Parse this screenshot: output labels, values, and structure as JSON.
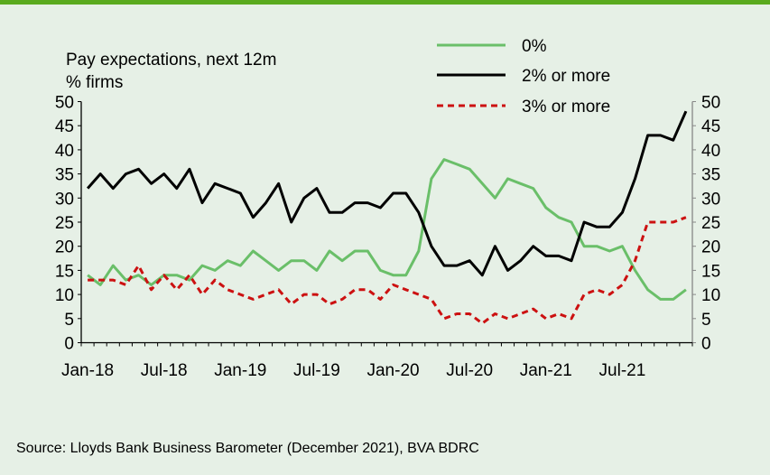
{
  "chart_data": {
    "type": "line",
    "title": "Pay expectations, next 12m",
    "subtitle": "% firms",
    "source": "Source: Lloyds Bank Business Barometer (December 2021), BVA BDRC",
    "ylim": [
      0,
      50
    ],
    "yticks": [
      "0",
      "5",
      "10",
      "15",
      "20",
      "25",
      "30",
      "35",
      "40",
      "45",
      "50"
    ],
    "xticks": [
      "Jan-18",
      "Jul-18",
      "Jan-19",
      "Jul-19",
      "Jan-20",
      "Jul-20",
      "Jan-21",
      "Jul-21"
    ],
    "x": [
      "Jan-18",
      "Feb-18",
      "Mar-18",
      "Apr-18",
      "May-18",
      "Jun-18",
      "Jul-18",
      "Aug-18",
      "Sep-18",
      "Oct-18",
      "Nov-18",
      "Dec-18",
      "Jan-19",
      "Feb-19",
      "Mar-19",
      "Apr-19",
      "May-19",
      "Jun-19",
      "Jul-19",
      "Aug-19",
      "Sep-19",
      "Oct-19",
      "Nov-19",
      "Dec-19",
      "Jan-20",
      "Feb-20",
      "Mar-20",
      "Apr-20",
      "May-20",
      "Jun-20",
      "Jul-20",
      "Aug-20",
      "Sep-20",
      "Oct-20",
      "Nov-20",
      "Dec-20",
      "Jan-21",
      "Feb-21",
      "Mar-21",
      "Apr-21",
      "May-21",
      "Jun-21",
      "Jul-21",
      "Aug-21",
      "Sep-21",
      "Oct-21",
      "Nov-21",
      "Dec-21"
    ],
    "grid": false,
    "legend_position": "top-right",
    "series": [
      {
        "name": "0%",
        "color": "#6abf69",
        "style": "solid",
        "values": [
          14,
          12,
          16,
          13,
          14,
          12,
          14,
          14,
          13,
          16,
          15,
          17,
          16,
          19,
          17,
          15,
          17,
          17,
          15,
          19,
          17,
          19,
          19,
          15,
          14,
          14,
          19,
          34,
          38,
          37,
          36,
          33,
          30,
          34,
          33,
          32,
          28,
          26,
          25,
          20,
          20,
          19,
          20,
          15,
          11,
          9,
          9,
          11
        ]
      },
      {
        "name": "2% or more",
        "color": "#000000",
        "style": "solid",
        "values": [
          32,
          35,
          32,
          35,
          36,
          33,
          35,
          32,
          36,
          29,
          33,
          32,
          31,
          26,
          29,
          33,
          25,
          30,
          32,
          27,
          27,
          29,
          29,
          28,
          31,
          31,
          27,
          20,
          16,
          16,
          17,
          14,
          20,
          15,
          17,
          20,
          18,
          18,
          17,
          25,
          24,
          24,
          27,
          34,
          43,
          43,
          42,
          48
        ]
      },
      {
        "name": "3% or more",
        "color": "#cc1111",
        "style": "dashed",
        "values": [
          13,
          13,
          13,
          12,
          16,
          11,
          14,
          11,
          14,
          10,
          13,
          11,
          10,
          9,
          10,
          11,
          8,
          10,
          10,
          8,
          9,
          11,
          11,
          9,
          12,
          11,
          10,
          9,
          5,
          6,
          6,
          4,
          6,
          5,
          6,
          7,
          5,
          6,
          5,
          10,
          11,
          10,
          12,
          17,
          25,
          25,
          25,
          26
        ]
      }
    ]
  }
}
